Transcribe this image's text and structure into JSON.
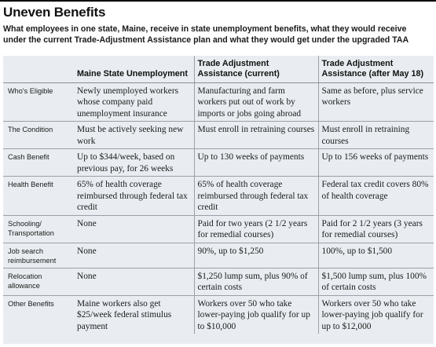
{
  "title": "Uneven Benefits",
  "subtitle": "What employees in one state, Maine, receive in state unemployment benefits, what they would receive under the current Trade-Adjustment Assistance plan and what they would get under the upgraded TAA",
  "table": {
    "headers": [
      "",
      "Maine State Unemployment",
      "Trade Adjustment Assistance (current)",
      "Trade Adjustment Assistance (after May 18)"
    ],
    "rows": [
      {
        "label": "Who's Eligible",
        "maine": "Newly unemployed workers whose company paid unemployment insurance",
        "taa_current": "Manufacturing and farm workers put out of work by imports or jobs going abroad",
        "taa_after": "Same as before, plus service workers"
      },
      {
        "label": "The Condition",
        "maine": "Must be actively seeking new work",
        "taa_current": "Must enroll in retraining courses",
        "taa_after": "Must enroll in retraining courses"
      },
      {
        "label": "Cash Benefit",
        "maine": "Up to $344/week, based on previous pay, for 26 weeks",
        "taa_current": "Up to 130 weeks of payments",
        "taa_after": "Up to 156 weeks of payments"
      },
      {
        "label": "Health Benefit",
        "maine": "65% of health coverage reimbursed through federal tax credit",
        "taa_current": "65% of health coverage reimbursed through federal tax credit",
        "taa_after": "Federal tax credit covers 80% of health coverage"
      },
      {
        "label": "Schooling/ Transportation",
        "maine": "None",
        "taa_current": "Paid for two years (2 1/2 years for remedial courses)",
        "taa_after": "Paid for 2 1/2 years (3 years for remedial courses)"
      },
      {
        "label": "Job search reimbursement",
        "maine": "None",
        "taa_current": "90%, up to $1,250",
        "taa_after": "100%, up to $1,500"
      },
      {
        "label": "Relocation allowance",
        "maine": "None",
        "taa_current": "$1,250 lump sum, plus 90% of certain costs",
        "taa_after": "$1,500 lump sum, plus 100% of certain costs"
      },
      {
        "label": "Other Benefits",
        "maine": "Maine workers also get $25/week federal stimulus payment",
        "taa_current": "Workers over 50 who take lower-paying job qualify for up to $10,000",
        "taa_after": "Workers over 50 who take lower-paying job qualify for up to $12,000"
      }
    ]
  }
}
